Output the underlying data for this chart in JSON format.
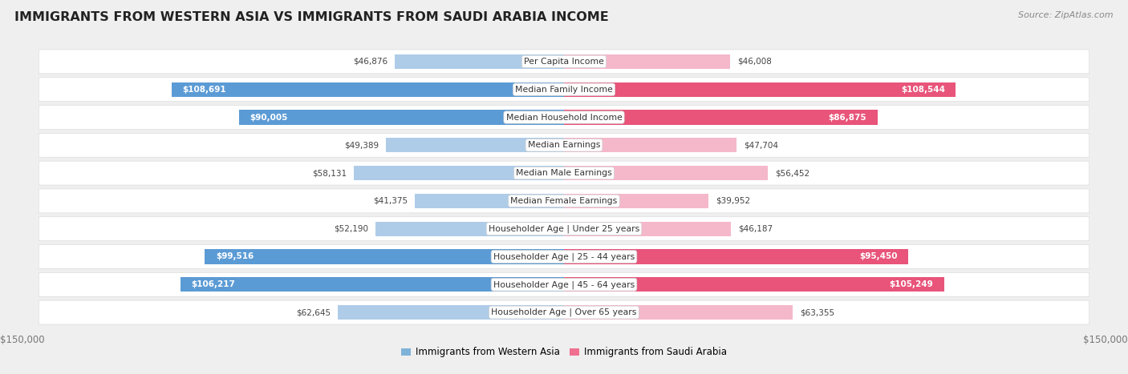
{
  "title": "IMMIGRANTS FROM WESTERN ASIA VS IMMIGRANTS FROM SAUDI ARABIA INCOME",
  "source": "Source: ZipAtlas.com",
  "categories": [
    "Per Capita Income",
    "Median Family Income",
    "Median Household Income",
    "Median Earnings",
    "Median Male Earnings",
    "Median Female Earnings",
    "Householder Age | Under 25 years",
    "Householder Age | 25 - 44 years",
    "Householder Age | 45 - 64 years",
    "Householder Age | Over 65 years"
  ],
  "western_asia": [
    46876,
    108691,
    90005,
    49389,
    58131,
    41375,
    52190,
    99516,
    106217,
    62645
  ],
  "saudi_arabia": [
    46008,
    108544,
    86875,
    47704,
    56452,
    39952,
    46187,
    95450,
    105249,
    63355
  ],
  "max_val": 150000,
  "blue_light": "#AECCE8",
  "blue_dark": "#5B9BD5",
  "pink_light": "#F5B8CB",
  "pink_dark": "#E8547A",
  "bg_color": "#EFEFEF",
  "row_bg": "#FFFFFF",
  "title_color": "#222222",
  "axis_label_color": "#777777",
  "legend_blue": "#7EB3D8",
  "legend_pink": "#F07090",
  "inside_label_threshold": 70000,
  "label_outside_color": "#444444",
  "label_inside_color": "#FFFFFF"
}
